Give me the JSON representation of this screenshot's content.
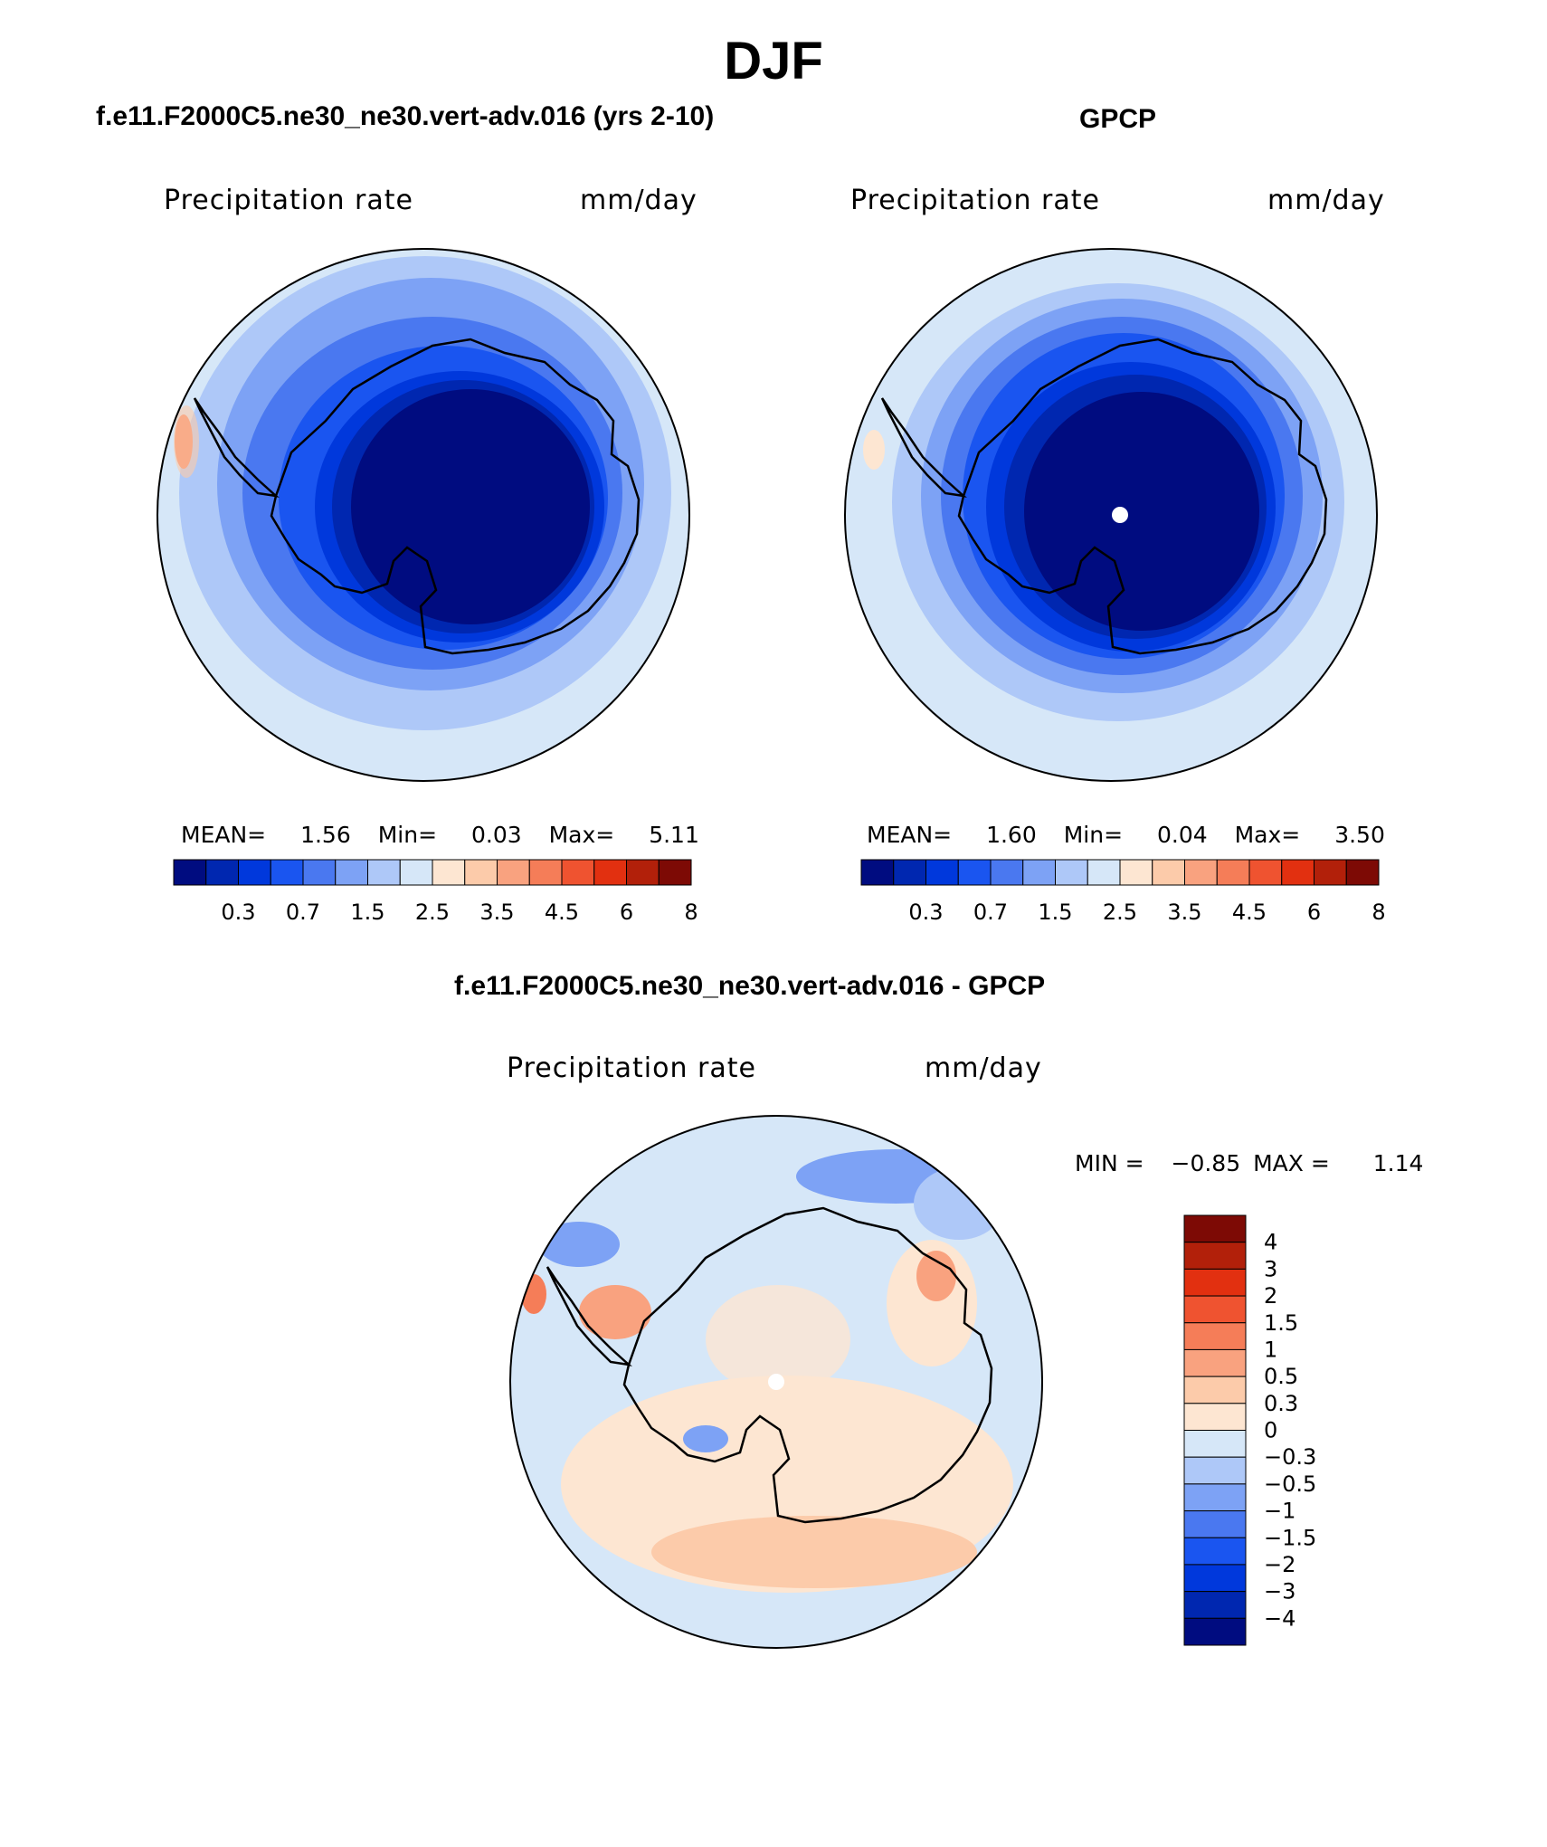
{
  "title": "DJF",
  "panels": {
    "model": {
      "title": "f.e11.F2000C5.ne30_ne30.vert-adv.016 (yrs 2-10)",
      "var_label": "Precipitation rate",
      "units": "mm/day",
      "stats": {
        "mean_label": "MEAN=",
        "mean": "1.56",
        "min_label": "Min=",
        "min": "0.03",
        "max_label": "Max=",
        "max": "5.11"
      }
    },
    "obs": {
      "title": "GPCP",
      "var_label": "Precipitation rate",
      "units": "mm/day",
      "stats": {
        "mean_label": "MEAN=",
        "mean": "1.60",
        "min_label": "Min=",
        "min": "0.04",
        "max_label": "Max=",
        "max": "3.50"
      }
    },
    "diff": {
      "title": "f.e11.F2000C5.ne30_ne30.vert-adv.016 - GPCP",
      "var_label": "Precipitation rate",
      "units": "mm/day",
      "stats": {
        "min_label": "MIN =",
        "min": "−0.85",
        "max_label": "MAX =",
        "max": "1.14"
      }
    }
  },
  "chart_data": [
    {
      "type": "heatmap",
      "projection": "south-polar-stereographic",
      "title": "f.e11.F2000C5.ne30_ne30.vert-adv.016 (yrs 2-10)",
      "variable": "Precipitation rate",
      "units": "mm/day",
      "mean": 1.56,
      "min": 0.03,
      "max": 5.11,
      "colorbar": {
        "levels": [
          0.2,
          0.3,
          0.5,
          0.7,
          1,
          1.5,
          2,
          2.5,
          3,
          3.5,
          4,
          4.5,
          5,
          6,
          7,
          8
        ],
        "tick_labels": [
          "0.3",
          "0.7",
          "1.5",
          "2.5",
          "3.5",
          "4.5",
          "6",
          "8"
        ],
        "colors": [
          "#000c80",
          "#0027b0",
          "#0038dc",
          "#1a55f0",
          "#4a78f0",
          "#7da2f5",
          "#aec8f8",
          "#d6e7f8",
          "#fde6d2",
          "#fccbaa",
          "#f9a27f",
          "#f57d58",
          "#ef5330",
          "#e23010",
          "#b2200a",
          "#7d0a05"
        ]
      }
    },
    {
      "type": "heatmap",
      "projection": "south-polar-stereographic",
      "title": "GPCP",
      "variable": "Precipitation rate",
      "units": "mm/day",
      "mean": 1.6,
      "min": 0.04,
      "max": 3.5,
      "colorbar": {
        "levels": [
          0.2,
          0.3,
          0.5,
          0.7,
          1,
          1.5,
          2,
          2.5,
          3,
          3.5,
          4,
          4.5,
          5,
          6,
          7,
          8
        ],
        "tick_labels": [
          "0.3",
          "0.7",
          "1.5",
          "2.5",
          "3.5",
          "4.5",
          "6",
          "8"
        ],
        "colors": [
          "#000c80",
          "#0027b0",
          "#0038dc",
          "#1a55f0",
          "#4a78f0",
          "#7da2f5",
          "#aec8f8",
          "#d6e7f8",
          "#fde6d2",
          "#fccbaa",
          "#f9a27f",
          "#f57d58",
          "#ef5330",
          "#e23010",
          "#b2200a",
          "#7d0a05"
        ]
      }
    },
    {
      "type": "heatmap",
      "projection": "south-polar-stereographic",
      "title": "f.e11.F2000C5.ne30_ne30.vert-adv.016 - GPCP",
      "variable": "Precipitation rate",
      "units": "mm/day",
      "min": -0.85,
      "max": 1.14,
      "colorbar": {
        "tick_labels": [
          "4",
          "3",
          "2",
          "1.5",
          "1",
          "0.5",
          "0.3",
          "0",
          "−0.3",
          "−0.5",
          "−1",
          "−1.5",
          "−2",
          "−3",
          "−4"
        ],
        "colors": [
          "#7d0a05",
          "#b2200a",
          "#e23010",
          "#ef5330",
          "#f57d58",
          "#f9a27f",
          "#fccbaa",
          "#fde6d2",
          "#d6e7f8",
          "#aec8f8",
          "#7da2f5",
          "#4a78f0",
          "#1a55f0",
          "#0038dc",
          "#0027b0",
          "#000c80"
        ]
      }
    }
  ]
}
